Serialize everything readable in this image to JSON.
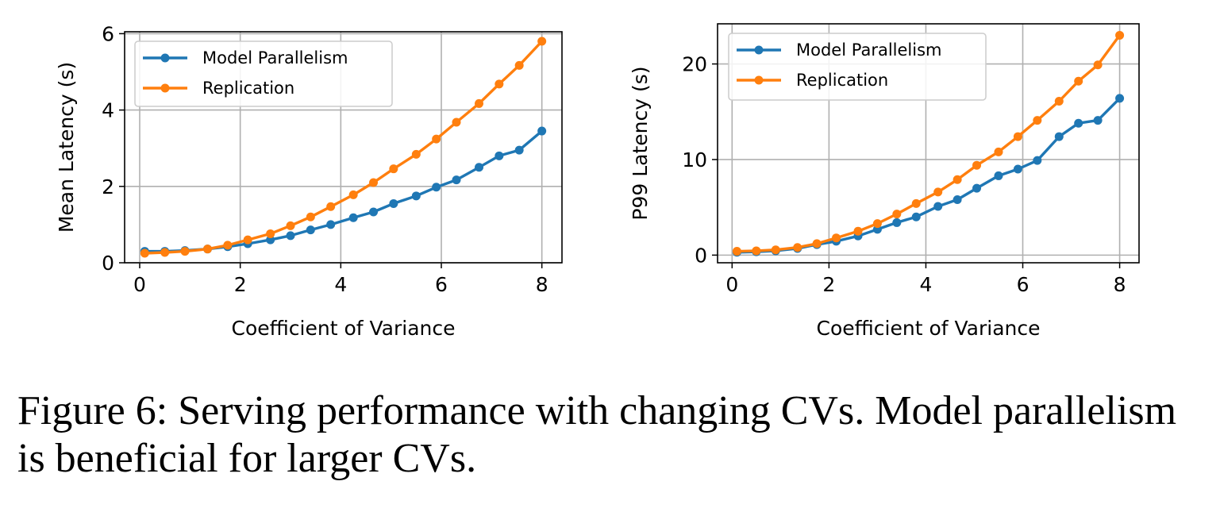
{
  "caption": "Figure 6: Serving performance with changing CVs. Model parallelism is beneficial for larger CVs.",
  "colors": {
    "model_parallelism": "#1f77b4",
    "replication": "#ff7f0e",
    "grid": "#b0b0b0"
  },
  "chart_data": [
    {
      "type": "line",
      "xlabel": "Coefficient of Variance",
      "ylabel": "Mean Latency (s)",
      "xlim": [
        -0.3,
        8.4
      ],
      "ylim": [
        0,
        6.05
      ],
      "xticks": [
        0,
        2,
        4,
        6,
        8
      ],
      "yticks": [
        0,
        2,
        4,
        6
      ],
      "grid": true,
      "legend": "top-left",
      "x": [
        0.1,
        0.5,
        0.9,
        1.35,
        1.75,
        2.15,
        2.6,
        3.0,
        3.4,
        3.8,
        4.25,
        4.65,
        5.05,
        5.5,
        5.9,
        6.3,
        6.75,
        7.15,
        7.55,
        8.0
      ],
      "series": [
        {
          "name": "Model Parallelism",
          "values": [
            0.3,
            0.3,
            0.32,
            0.36,
            0.42,
            0.5,
            0.6,
            0.71,
            0.86,
            1.0,
            1.18,
            1.33,
            1.55,
            1.75,
            1.98,
            2.17,
            2.5,
            2.8,
            2.95,
            3.45
          ]
        },
        {
          "name": "Replication",
          "values": [
            0.25,
            0.27,
            0.3,
            0.36,
            0.46,
            0.6,
            0.76,
            0.97,
            1.2,
            1.47,
            1.78,
            2.1,
            2.46,
            2.84,
            3.24,
            3.68,
            4.17,
            4.68,
            5.17,
            5.8
          ]
        }
      ]
    },
    {
      "type": "line",
      "xlabel": "Coefficient of Variance",
      "ylabel": "P99 Latency (s)",
      "xlim": [
        -0.3,
        8.4
      ],
      "ylim": [
        -0.8,
        24.2
      ],
      "xticks": [
        0,
        2,
        4,
        6,
        8
      ],
      "yticks": [
        0,
        10,
        20
      ],
      "grid": true,
      "legend": "top-left",
      "x": [
        0.1,
        0.5,
        0.9,
        1.35,
        1.75,
        2.15,
        2.6,
        3.0,
        3.4,
        3.8,
        4.25,
        4.65,
        5.05,
        5.5,
        5.9,
        6.3,
        6.75,
        7.15,
        7.55,
        8.0
      ],
      "series": [
        {
          "name": "Model Parallelism",
          "values": [
            0.3,
            0.35,
            0.45,
            0.7,
            1.1,
            1.45,
            2.0,
            2.7,
            3.4,
            4.0,
            5.1,
            5.8,
            7.0,
            8.3,
            9.0,
            9.9,
            12.4,
            13.8,
            14.1,
            16.4
          ]
        },
        {
          "name": "Replication",
          "values": [
            0.4,
            0.45,
            0.55,
            0.8,
            1.2,
            1.8,
            2.5,
            3.3,
            4.3,
            5.4,
            6.6,
            7.9,
            9.4,
            10.8,
            12.4,
            14.1,
            16.1,
            18.2,
            19.9,
            23.0
          ]
        }
      ]
    }
  ]
}
